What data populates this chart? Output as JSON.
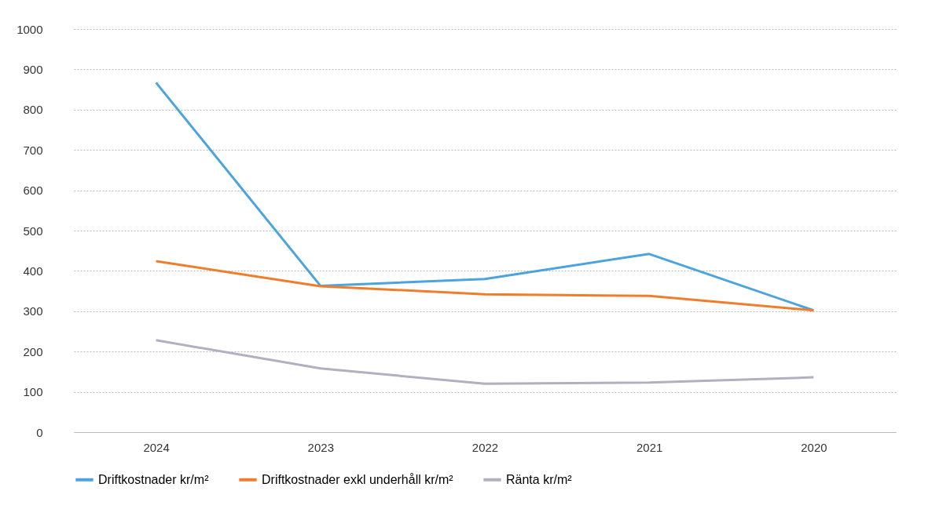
{
  "chart_data": {
    "type": "line",
    "categories": [
      "2024",
      "2023",
      "2022",
      "2021",
      "2020"
    ],
    "series": [
      {
        "name": "Driftkostnader kr/m²",
        "color": "#4ba3e0",
        "values": [
          867,
          363,
          380,
          442,
          302
        ]
      },
      {
        "name": "Driftkostnader exkl underhåll kr/m²",
        "color": "#f07d2b",
        "values": [
          424,
          362,
          342,
          338,
          302
        ]
      },
      {
        "name": "Ränta kr/m²",
        "color": "#b3afc0",
        "values": [
          228,
          158,
          120,
          123,
          136
        ]
      }
    ],
    "ylim": [
      0,
      1000
    ],
    "yticks": [
      0,
      100,
      200,
      300,
      400,
      500,
      600,
      700,
      800,
      900,
      1000
    ],
    "grid": "y",
    "legend": "bottom",
    "line_style": "solid",
    "marker": "none"
  }
}
